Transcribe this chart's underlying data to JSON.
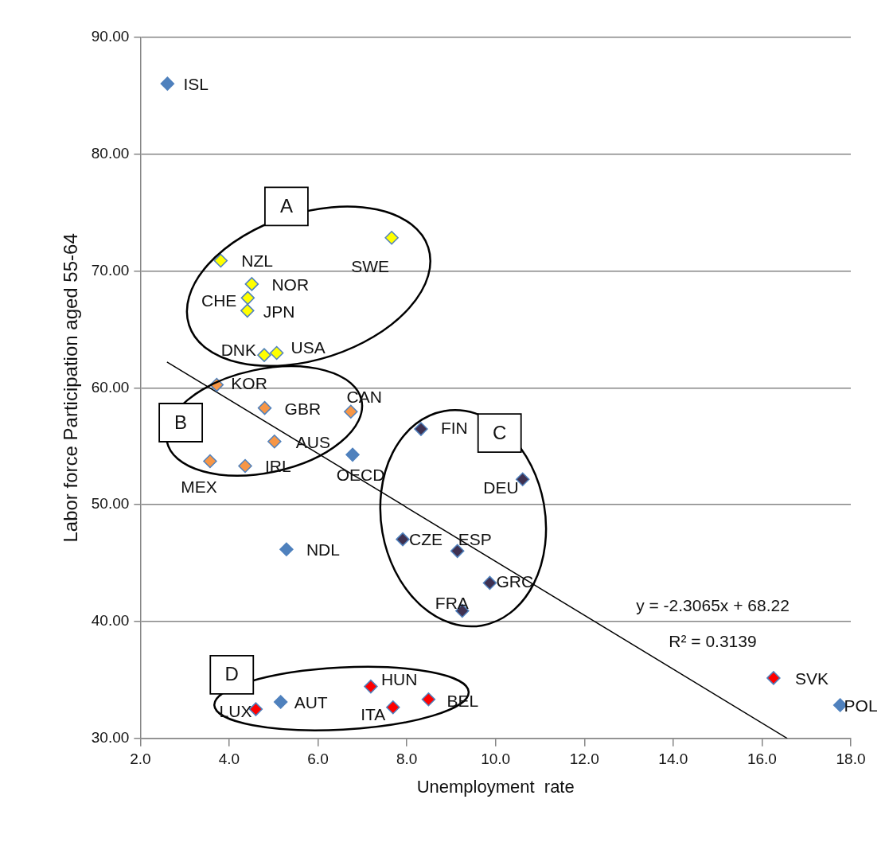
{
  "chart_data": {
    "type": "scatter",
    "xlabel": "Unemployment  rate",
    "ylabel": "Labor force Participation aged 55-64",
    "xlim": [
      2,
      18
    ],
    "xticks": [
      {
        "value": 2,
        "label": "2.0"
      },
      {
        "value": 4,
        "label": "4.0"
      },
      {
        "value": 6,
        "label": "6.0"
      },
      {
        "value": 8,
        "label": "8.0"
      },
      {
        "value": 10,
        "label": "10.0"
      },
      {
        "value": 12,
        "label": "12.0"
      },
      {
        "value": 14,
        "label": "14.0"
      },
      {
        "value": 16,
        "label": "16.0"
      },
      {
        "value": 18,
        "label": "18.0"
      }
    ],
    "ylim": [
      30,
      90
    ],
    "yticks": [
      {
        "value": 30,
        "label": "30.00"
      },
      {
        "value": 40,
        "label": "40.00"
      },
      {
        "value": 50,
        "label": "50.00"
      },
      {
        "value": 60,
        "label": "60.00"
      },
      {
        "value": 70,
        "label": "70.00"
      },
      {
        "value": 80,
        "label": "80.00"
      },
      {
        "value": 90,
        "label": "90.00"
      }
    ],
    "grid": "y",
    "legend": false,
    "marker": "diamond",
    "series": [
      {
        "color": "#4f81bd",
        "x": [
          2.61,
          6.78,
          5.29,
          5.16,
          17.76
        ],
        "values": [
          86.04,
          54.28,
          46.18,
          33.12,
          32.85
        ]
      },
      {
        "color": "#ffff00",
        "x": [
          3.81,
          7.66,
          4.51,
          4.42,
          4.41,
          4.79,
          5.07
        ],
        "values": [
          70.89,
          72.85,
          68.89,
          67.7,
          66.61,
          62.81,
          62.99
        ]
      },
      {
        "color": "#f79646",
        "x": [
          3.72,
          4.8,
          6.74,
          5.02,
          3.57,
          4.36
        ],
        "values": [
          60.26,
          58.28,
          57.97,
          55.41,
          53.73,
          53.32
        ]
      },
      {
        "color": "#3f3151",
        "x": [
          8.32,
          10.61,
          7.91,
          9.14,
          9.87,
          9.25
        ],
        "values": [
          56.48,
          52.18,
          47.04,
          46.04,
          43.31,
          40.92
        ]
      },
      {
        "color": "#ff0000",
        "x": [
          4.6,
          7.19,
          7.69,
          8.49,
          16.26
        ],
        "values": [
          32.5,
          34.44,
          32.66,
          33.34,
          35.17
        ]
      },
      {
        "type": "line",
        "color": "#000000",
        "line_style": "solid",
        "marker": "none",
        "x": [
          2.6,
          16.57
        ],
        "values": [
          62.22,
          30.0
        ]
      }
    ],
    "annotations": [
      {
        "text": "ISL",
        "x": 2.61,
        "y": 86.04
      },
      {
        "text": "OECD",
        "x": 6.78,
        "y": 54.28
      },
      {
        "text": "NDL",
        "x": 5.29,
        "y": 46.18
      },
      {
        "text": "AUT",
        "x": 5.16,
        "y": 33.12
      },
      {
        "text": "POL",
        "x": 17.76,
        "y": 32.85
      },
      {
        "text": "NZL",
        "x": 3.81,
        "y": 70.89
      },
      {
        "text": "SWE",
        "x": 7.66,
        "y": 72.85
      },
      {
        "text": "NOR",
        "x": 4.51,
        "y": 68.89
      },
      {
        "text": "CHE",
        "x": 4.42,
        "y": 67.7
      },
      {
        "text": "JPN",
        "x": 4.41,
        "y": 66.61
      },
      {
        "text": "DNK",
        "x": 4.79,
        "y": 62.81
      },
      {
        "text": "USA",
        "x": 5.07,
        "y": 62.99
      },
      {
        "text": "KOR",
        "x": 3.72,
        "y": 60.26
      },
      {
        "text": "GBR",
        "x": 4.8,
        "y": 58.28
      },
      {
        "text": "CAN",
        "x": 6.74,
        "y": 57.97
      },
      {
        "text": "AUS",
        "x": 5.02,
        "y": 55.41
      },
      {
        "text": "MEX",
        "x": 3.57,
        "y": 53.73
      },
      {
        "text": "IRL",
        "x": 4.36,
        "y": 53.32
      },
      {
        "text": "FIN",
        "x": 8.32,
        "y": 56.48
      },
      {
        "text": "DEU",
        "x": 10.61,
        "y": 52.18
      },
      {
        "text": "CZE",
        "x": 7.91,
        "y": 47.04
      },
      {
        "text": "ESP",
        "x": 9.14,
        "y": 46.04
      },
      {
        "text": "GRC",
        "x": 9.87,
        "y": 43.31
      },
      {
        "text": "FRA",
        "x": 9.25,
        "y": 40.92
      },
      {
        "text": "LUX",
        "x": 4.6,
        "y": 32.5
      },
      {
        "text": "HUN",
        "x": 7.19,
        "y": 34.44
      },
      {
        "text": "ITA",
        "x": 7.69,
        "y": 32.66
      },
      {
        "text": "BEL",
        "x": 8.49,
        "y": 33.34
      },
      {
        "text": "SVK",
        "x": 16.26,
        "y": 35.17
      },
      "A",
      "B",
      "C",
      "D",
      "y = -2.3065x + 68.22",
      "R² = 0.3139"
    ]
  }
}
